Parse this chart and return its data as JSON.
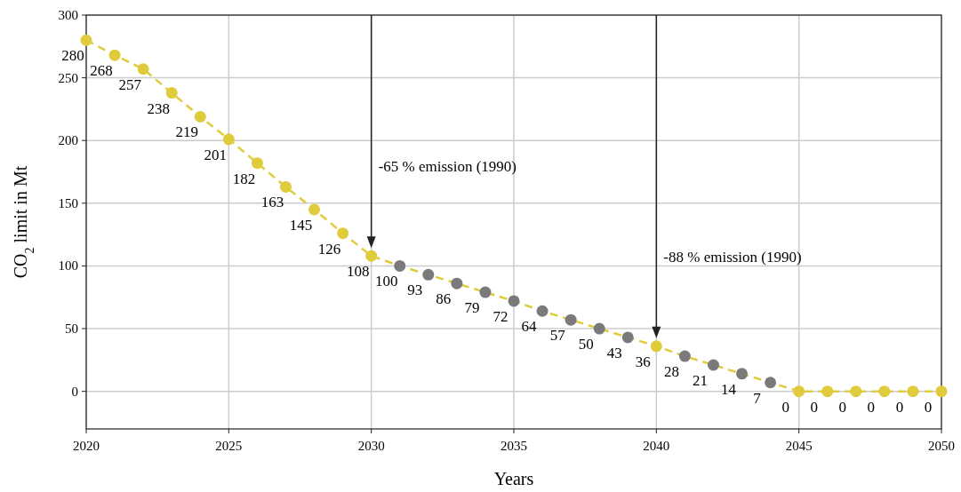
{
  "chart_data": {
    "type": "line",
    "xlabel": "Years",
    "ylabel": "CO$_{2}$ limit in Mt",
    "x": [
      2020,
      2021,
      2022,
      2023,
      2024,
      2025,
      2026,
      2027,
      2028,
      2029,
      2030,
      2031,
      2032,
      2033,
      2034,
      2035,
      2036,
      2037,
      2038,
      2039,
      2040,
      2041,
      2042,
      2043,
      2044,
      2045,
      2046,
      2047,
      2048,
      2049,
      2050
    ],
    "series": [
      {
        "color": "#e0cb3c",
        "values": [
          280,
          268,
          257,
          238,
          219,
          201,
          182,
          163,
          145,
          126,
          108,
          100,
          93,
          86,
          79,
          72,
          64,
          57,
          50,
          43,
          36,
          28,
          21,
          14,
          7,
          0,
          0,
          0,
          0,
          0,
          0
        ],
        "colors": [
          "#e0cb3c",
          "#e0cb3c",
          "#e0cb3c",
          "#e0cb3c",
          "#e0cb3c",
          "#e0cb3c",
          "#e0cb3c",
          "#e0cb3c",
          "#e0cb3c",
          "#e0cb3c",
          "#e0cb3c",
          "#7a7a7a",
          "#7a7a7a",
          "#7a7a7a",
          "#7a7a7a",
          "#7a7a7a",
          "#7a7a7a",
          "#7a7a7a",
          "#7a7a7a",
          "#7a7a7a",
          "#e0cb3c",
          "#7a7a7a",
          "#7a7a7a",
          "#7a7a7a",
          "#7a7a7a",
          "#e0cb3c",
          "#e0cb3c",
          "#e0cb3c",
          "#e0cb3c",
          "#e0cb3c",
          "#e0cb3c"
        ]
      }
    ],
    "xlim": [
      2020,
      2050
    ],
    "xticks": [
      2020,
      2025,
      2030,
      2035,
      2040,
      2045,
      2050
    ],
    "ylim": [
      -30,
      300
    ],
    "yticks": [
      0,
      50,
      100,
      150,
      200,
      250,
      300
    ],
    "grid": true,
    "marker": "circle",
    "line_style": "dashed",
    "data_labels": true,
    "ref_lines": [
      {
        "axis": "x",
        "value": 2030,
        "label": "-65 % emission (1990)",
        "color": "#222222"
      },
      {
        "axis": "x",
        "value": 2040,
        "label": "-88 % emission (1990)",
        "color": "#222222"
      }
    ]
  }
}
